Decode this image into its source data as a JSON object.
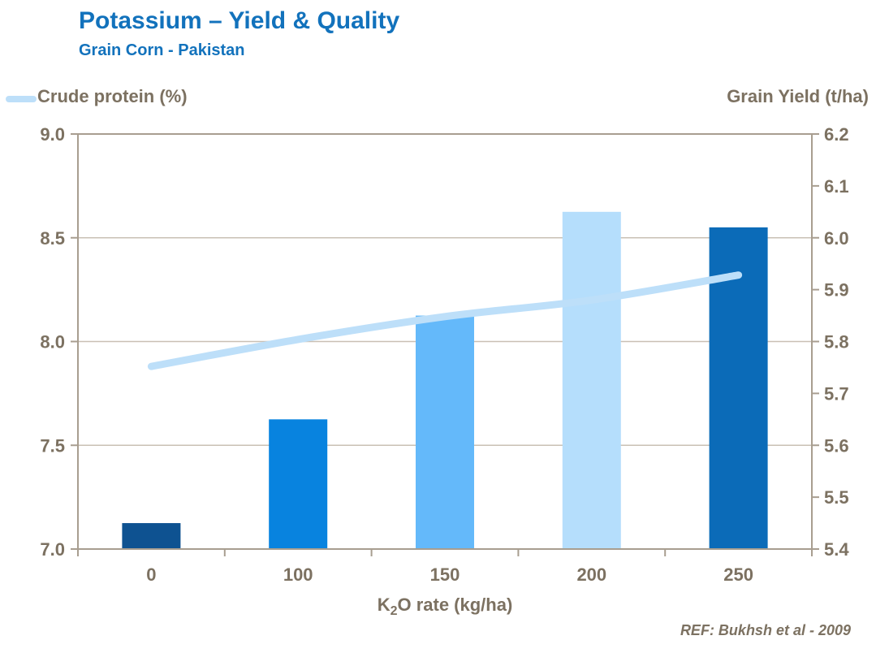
{
  "header": {
    "title": "Potassium – Yield & Quality",
    "subtitle": "Grain Corn - Pakistan"
  },
  "legend": {
    "left_label": "Crude protein (%)",
    "right_label": "Grain Yield (t/ha)"
  },
  "footer": {
    "ref": "REF:  Bukhsh  et al - 2009"
  },
  "colors": {
    "title_blue": "#1272BC",
    "axis_text": "#7C7161",
    "axis_line": "#A89E90",
    "gridline": "#C9C0B4",
    "line_series": "#BDDFF9",
    "bar_series": [
      "#0E5291",
      "#0883DF",
      "#64B9FA",
      "#B5DEFC",
      "#0B6BB8"
    ]
  },
  "chart_data": {
    "type": "bar",
    "title": "Potassium – Yield & Quality",
    "subtitle": "Grain Corn - Pakistan",
    "categories": [
      "0",
      "100",
      "150",
      "200",
      "250"
    ],
    "series": [
      {
        "name": "Grain Yield (t/ha)",
        "type": "bar",
        "axis": "right",
        "values": [
          5.45,
          5.65,
          5.85,
          6.05,
          6.02
        ]
      },
      {
        "name": "Crude protein (%)",
        "type": "line",
        "axis": "left",
        "values": [
          7.88,
          8.01,
          8.12,
          8.2,
          8.32
        ]
      }
    ],
    "left_axis": {
      "title": "Crude protein (%)",
      "min": 7.0,
      "max": 9.0,
      "step": 0.5,
      "tick_labels": [
        "9.0",
        "8.5",
        "8.0",
        "7.5",
        "7.0"
      ]
    },
    "right_axis": {
      "title": "Grain Yield (t/ha)",
      "min": 5.4,
      "max": 6.2,
      "step": 0.1,
      "tick_labels": [
        "6.2",
        "6.1",
        "6.0",
        "5.9",
        "5.8",
        "5.7",
        "5.6",
        "5.5",
        "5.4"
      ]
    },
    "x_axis": {
      "label": "K₂O rate (kg/ha)",
      "title_pre": "K",
      "title_sub": "2",
      "title_post": "O rate (kg/ha)"
    },
    "grid": "horizontal gridlines at left-axis 0.5 intervals",
    "legend_position": "top-left",
    "annotation": "REF:  Bukhsh  et al - 2009"
  }
}
